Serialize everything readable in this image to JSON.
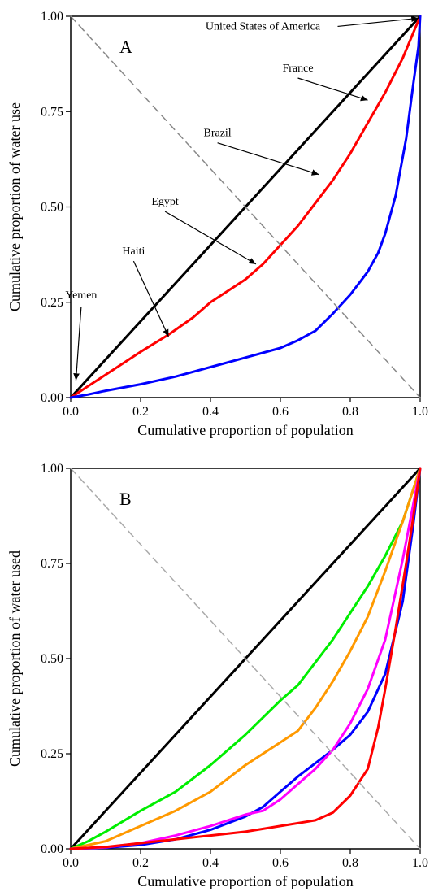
{
  "chart_data": [
    {
      "type": "line",
      "panel_label": "A",
      "xlabel": "Cumulative proportion of population",
      "ylabel": "Cumulative proportion of water use",
      "xlim": [
        0,
        1
      ],
      "ylim": [
        0,
        1
      ],
      "x_ticks": [
        "0.0",
        "0.2",
        "0.4",
        "0.6",
        "0.8",
        "1.0"
      ],
      "y_ticks": [
        "0.00",
        "0.25",
        "0.50",
        "0.75",
        "1.00"
      ],
      "grid": false,
      "series": [
        {
          "color": "#000000",
          "style": "solid",
          "points": [
            [
              0,
              0
            ],
            [
              1,
              1
            ]
          ]
        },
        {
          "color": "#ff0000",
          "style": "solid",
          "points": [
            [
              0,
              0
            ],
            [
              0.05,
              0.03
            ],
            [
              0.1,
              0.06
            ],
            [
              0.2,
              0.12
            ],
            [
              0.28,
              0.165
            ],
            [
              0.35,
              0.21
            ],
            [
              0.4,
              0.25
            ],
            [
              0.5,
              0.31
            ],
            [
              0.55,
              0.35
            ],
            [
              0.6,
              0.4
            ],
            [
              0.65,
              0.45
            ],
            [
              0.7,
              0.51
            ],
            [
              0.75,
              0.57
            ],
            [
              0.8,
              0.64
            ],
            [
              0.85,
              0.72
            ],
            [
              0.9,
              0.8
            ],
            [
              0.95,
              0.89
            ],
            [
              1,
              1
            ]
          ]
        },
        {
          "color": "#0000ff",
          "style": "solid",
          "points": [
            [
              0,
              0
            ],
            [
              0.05,
              0.008
            ],
            [
              0.1,
              0.018
            ],
            [
              0.2,
              0.035
            ],
            [
              0.3,
              0.055
            ],
            [
              0.4,
              0.08
            ],
            [
              0.5,
              0.105
            ],
            [
              0.6,
              0.13
            ],
            [
              0.65,
              0.15
            ],
            [
              0.7,
              0.175
            ],
            [
              0.75,
              0.22
            ],
            [
              0.8,
              0.27
            ],
            [
              0.85,
              0.33
            ],
            [
              0.88,
              0.38
            ],
            [
              0.9,
              0.43
            ],
            [
              0.93,
              0.53
            ],
            [
              0.96,
              0.68
            ],
            [
              0.98,
              0.82
            ],
            [
              0.995,
              0.92
            ],
            [
              1,
              1
            ]
          ]
        },
        {
          "color": "#888888",
          "style": "dashed",
          "points": [
            [
              0,
              1
            ],
            [
              1,
              0
            ]
          ]
        }
      ],
      "annotations": [
        {
          "text": "United States of America",
          "xy": [
            0.995,
            0.995
          ],
          "text_xy": [
            0.55,
            0.965
          ]
        },
        {
          "text": "France",
          "xy": [
            0.85,
            0.78
          ],
          "text_xy": [
            0.65,
            0.855
          ]
        },
        {
          "text": "Brazil",
          "xy": [
            0.71,
            0.585
          ],
          "text_xy": [
            0.42,
            0.685
          ]
        },
        {
          "text": "Egypt",
          "xy": [
            0.53,
            0.35
          ],
          "text_xy": [
            0.27,
            0.505
          ]
        },
        {
          "text": "Haiti",
          "xy": [
            0.28,
            0.16
          ],
          "text_xy": [
            0.18,
            0.375
          ]
        },
        {
          "text": "Yemen",
          "xy": [
            0.015,
            0.045
          ],
          "text_xy": [
            0.03,
            0.26
          ]
        }
      ]
    },
    {
      "type": "line",
      "panel_label": "B",
      "xlabel": "Cumulative proportion of population",
      "ylabel": "Cumulative proportion of water used",
      "xlim": [
        0,
        1
      ],
      "ylim": [
        0,
        1
      ],
      "x_ticks": [
        "0.0",
        "0.2",
        "0.4",
        "0.6",
        "0.8",
        "1.0"
      ],
      "y_ticks": [
        "0.00",
        "0.25",
        "0.50",
        "0.75",
        "1.00"
      ],
      "grid": false,
      "series": [
        {
          "color": "#000000",
          "style": "solid",
          "points": [
            [
              0,
              0
            ],
            [
              1,
              1
            ]
          ]
        },
        {
          "color": "#00ee00",
          "style": "solid",
          "points": [
            [
              0,
              0
            ],
            [
              0.05,
              0.02
            ],
            [
              0.1,
              0.045
            ],
            [
              0.2,
              0.1
            ],
            [
              0.3,
              0.15
            ],
            [
              0.4,
              0.22
            ],
            [
              0.5,
              0.3
            ],
            [
              0.6,
              0.39
            ],
            [
              0.65,
              0.43
            ],
            [
              0.7,
              0.49
            ],
            [
              0.75,
              0.55
            ],
            [
              0.8,
              0.62
            ],
            [
              0.85,
              0.69
            ],
            [
              0.9,
              0.77
            ],
            [
              0.95,
              0.86
            ],
            [
              1,
              1
            ]
          ]
        },
        {
          "color": "#ff9900",
          "style": "solid",
          "points": [
            [
              0,
              0
            ],
            [
              0.1,
              0.02
            ],
            [
              0.2,
              0.06
            ],
            [
              0.3,
              0.1
            ],
            [
              0.4,
              0.15
            ],
            [
              0.5,
              0.22
            ],
            [
              0.6,
              0.28
            ],
            [
              0.65,
              0.31
            ],
            [
              0.7,
              0.37
            ],
            [
              0.75,
              0.44
            ],
            [
              0.8,
              0.52
            ],
            [
              0.85,
              0.61
            ],
            [
              0.9,
              0.73
            ],
            [
              0.95,
              0.86
            ],
            [
              1,
              1
            ]
          ]
        },
        {
          "color": "#0000ff",
          "style": "solid",
          "points": [
            [
              0,
              0
            ],
            [
              0.1,
              0.003
            ],
            [
              0.2,
              0.01
            ],
            [
              0.3,
              0.025
            ],
            [
              0.4,
              0.05
            ],
            [
              0.5,
              0.085
            ],
            [
              0.55,
              0.11
            ],
            [
              0.6,
              0.15
            ],
            [
              0.65,
              0.19
            ],
            [
              0.7,
              0.225
            ],
            [
              0.75,
              0.26
            ],
            [
              0.8,
              0.3
            ],
            [
              0.85,
              0.36
            ],
            [
              0.9,
              0.46
            ],
            [
              0.95,
              0.65
            ],
            [
              0.98,
              0.85
            ],
            [
              1,
              1
            ]
          ]
        },
        {
          "color": "#ff00ff",
          "style": "solid",
          "points": [
            [
              0,
              0
            ],
            [
              0.1,
              0.004
            ],
            [
              0.2,
              0.015
            ],
            [
              0.3,
              0.035
            ],
            [
              0.4,
              0.06
            ],
            [
              0.5,
              0.09
            ],
            [
              0.55,
              0.1
            ],
            [
              0.6,
              0.13
            ],
            [
              0.65,
              0.17
            ],
            [
              0.7,
              0.21
            ],
            [
              0.75,
              0.26
            ],
            [
              0.8,
              0.33
            ],
            [
              0.85,
              0.42
            ],
            [
              0.9,
              0.55
            ],
            [
              0.95,
              0.76
            ],
            [
              1,
              1
            ]
          ]
        },
        {
          "color": "#ff0000",
          "style": "solid",
          "points": [
            [
              0,
              0
            ],
            [
              0.1,
              0.005
            ],
            [
              0.2,
              0.015
            ],
            [
              0.3,
              0.025
            ],
            [
              0.4,
              0.035
            ],
            [
              0.5,
              0.045
            ],
            [
              0.6,
              0.06
            ],
            [
              0.7,
              0.075
            ],
            [
              0.75,
              0.095
            ],
            [
              0.8,
              0.14
            ],
            [
              0.85,
              0.21
            ],
            [
              0.88,
              0.32
            ],
            [
              0.9,
              0.42
            ],
            [
              0.93,
              0.58
            ],
            [
              0.96,
              0.75
            ],
            [
              0.98,
              0.87
            ],
            [
              1,
              1
            ]
          ]
        },
        {
          "color": "#aaaaaa",
          "style": "dashed",
          "points": [
            [
              0,
              1
            ],
            [
              1,
              0
            ]
          ]
        }
      ],
      "annotations": []
    }
  ]
}
